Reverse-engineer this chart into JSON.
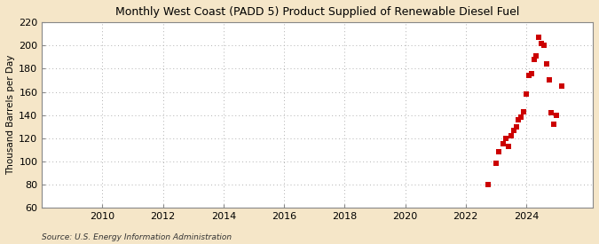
{
  "title": "Monthly West Coast (PADD 5) Product Supplied of Renewable Diesel Fuel",
  "ylabel": "Thousand Barrels per Day",
  "source": "Source: U.S. Energy Information Administration",
  "figure_bg_color": "#f5e6c8",
  "plot_bg_color": "#ffffff",
  "marker_color": "#cc0000",
  "marker": "s",
  "marker_size": 4,
  "xlim": [
    2008.0,
    2026.2
  ],
  "ylim": [
    60,
    220
  ],
  "yticks": [
    60,
    80,
    100,
    120,
    140,
    160,
    180,
    200,
    220
  ],
  "xticks": [
    2010,
    2012,
    2014,
    2016,
    2018,
    2020,
    2022,
    2024
  ],
  "data_points": [
    [
      2022.75,
      80
    ],
    [
      2023.0,
      98
    ],
    [
      2023.083,
      108
    ],
    [
      2023.25,
      115
    ],
    [
      2023.333,
      120
    ],
    [
      2023.417,
      113
    ],
    [
      2023.5,
      122
    ],
    [
      2023.583,
      127
    ],
    [
      2023.667,
      130
    ],
    [
      2023.75,
      136
    ],
    [
      2023.833,
      138
    ],
    [
      2023.917,
      143
    ],
    [
      2024.0,
      158
    ],
    [
      2024.083,
      174
    ],
    [
      2024.167,
      176
    ],
    [
      2024.25,
      188
    ],
    [
      2024.333,
      191
    ],
    [
      2024.417,
      207
    ],
    [
      2024.5,
      202
    ],
    [
      2024.583,
      200
    ],
    [
      2024.667,
      184
    ],
    [
      2024.75,
      170
    ],
    [
      2024.833,
      142
    ],
    [
      2024.917,
      132
    ],
    [
      2025.0,
      140
    ],
    [
      2025.167,
      165
    ]
  ]
}
